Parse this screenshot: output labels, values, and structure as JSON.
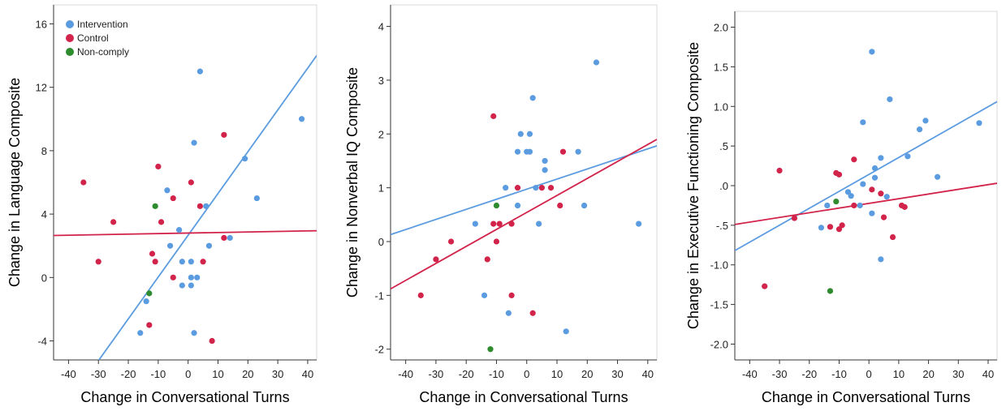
{
  "colors": {
    "intervention": "#5b9be0",
    "control": "#d2234a",
    "noncomply": "#2e8b2e"
  },
  "legend": [
    {
      "key": "intervention",
      "label": "Intervention"
    },
    {
      "key": "control",
      "label": "Control"
    },
    {
      "key": "noncomply",
      "label": "Non-comply"
    }
  ],
  "chart_data": [
    {
      "type": "scatter",
      "title": "",
      "xlabel": "Change in Conversational Turns",
      "ylabel": "Change in Language Composite",
      "xlim": [
        -45,
        43
      ],
      "ylim": [
        -5.2,
        17.2
      ],
      "xticks": [
        -40,
        -30,
        -20,
        -10,
        0,
        10,
        20,
        30,
        40
      ],
      "yticks": [
        -4,
        0,
        4,
        8,
        12,
        16
      ],
      "ytick_labels": [
        "-4",
        "0",
        "4",
        "8",
        "12",
        "16"
      ],
      "legend_position": "top-left",
      "series": [
        {
          "key": "intervention",
          "points": [
            [
              -16,
              -3.5
            ],
            [
              -14,
              -1.5
            ],
            [
              -7,
              5.5
            ],
            [
              -6,
              2
            ],
            [
              -3,
              3
            ],
            [
              -2,
              -0.5
            ],
            [
              -2,
              1
            ],
            [
              1,
              -0.5
            ],
            [
              1,
              0
            ],
            [
              1,
              1
            ],
            [
              2,
              8.5
            ],
            [
              2,
              -3.5
            ],
            [
              3,
              0
            ],
            [
              4,
              13
            ],
            [
              6,
              4.5
            ],
            [
              7,
              2
            ],
            [
              14,
              2.5
            ],
            [
              19,
              7.5
            ],
            [
              23,
              5
            ],
            [
              38,
              10
            ]
          ]
        },
        {
          "key": "control",
          "points": [
            [
              -35,
              6
            ],
            [
              -30,
              1
            ],
            [
              -25,
              3.5
            ],
            [
              -13,
              -3
            ],
            [
              -12,
              1.5
            ],
            [
              -11,
              1
            ],
            [
              -10,
              7
            ],
            [
              -9,
              3.5
            ],
            [
              -5,
              5
            ],
            [
              -5,
              0
            ],
            [
              1,
              6
            ],
            [
              4,
              4.5
            ],
            [
              5,
              1
            ],
            [
              8,
              -4
            ],
            [
              12,
              2.5
            ],
            [
              12,
              9
            ]
          ]
        },
        {
          "key": "noncomply",
          "points": [
            [
              -13,
              -1
            ],
            [
              -11,
              4.5
            ]
          ]
        }
      ],
      "fit_lines": [
        {
          "key": "intervention",
          "x": [
            -45,
            43
          ],
          "y": [
            -9.2,
            14.0
          ]
        },
        {
          "key": "control",
          "x": [
            -45,
            43
          ],
          "y": [
            2.65,
            2.95
          ]
        }
      ]
    },
    {
      "type": "scatter",
      "title": "",
      "xlabel": "Change in Conversational Turns",
      "ylabel": "Change in Nonverbal IQ Composite",
      "xlim": [
        -45,
        43
      ],
      "ylim": [
        -2.2,
        4.4
      ],
      "xticks": [
        -40,
        -30,
        -20,
        -10,
        0,
        10,
        20,
        30,
        40
      ],
      "yticks": [
        -2,
        -1,
        0,
        1,
        2,
        3,
        4
      ],
      "ytick_labels": [
        "-2",
        "-1",
        "0",
        "1",
        "2",
        "3",
        "4"
      ],
      "series": [
        {
          "key": "intervention",
          "points": [
            [
              -17,
              0.33
            ],
            [
              -14,
              -1
            ],
            [
              -7,
              1
            ],
            [
              -6,
              -1.33
            ],
            [
              -3,
              0.67
            ],
            [
              -3,
              1.67
            ],
            [
              -2,
              2
            ],
            [
              0,
              1.67
            ],
            [
              1,
              2
            ],
            [
              1,
              1.67
            ],
            [
              2,
              2.67
            ],
            [
              3,
              1
            ],
            [
              4,
              0.33
            ],
            [
              6,
              1.5
            ],
            [
              6,
              1.33
            ],
            [
              13,
              -1.67
            ],
            [
              17,
              1.67
            ],
            [
              19,
              0.67
            ],
            [
              23,
              3.33
            ],
            [
              37,
              0.33
            ]
          ]
        },
        {
          "key": "control",
          "points": [
            [
              -35,
              -1
            ],
            [
              -30,
              -0.33
            ],
            [
              -25,
              0
            ],
            [
              -13,
              -0.33
            ],
            [
              -11,
              2.33
            ],
            [
              -11,
              0.33
            ],
            [
              -10,
              0
            ],
            [
              -9,
              0.33
            ],
            [
              -5,
              0.33
            ],
            [
              -5,
              -1
            ],
            [
              -3,
              1
            ],
            [
              2,
              -1.33
            ],
            [
              5,
              1
            ],
            [
              8,
              1
            ],
            [
              11,
              0.67
            ],
            [
              12,
              1.67
            ]
          ]
        },
        {
          "key": "noncomply",
          "points": [
            [
              -12,
              -2
            ],
            [
              -10,
              0.67
            ]
          ]
        }
      ],
      "fit_lines": [
        {
          "key": "intervention",
          "x": [
            -45,
            43
          ],
          "y": [
            0.13,
            1.78
          ]
        },
        {
          "key": "control",
          "x": [
            -45,
            43
          ],
          "y": [
            -0.88,
            1.9
          ]
        }
      ]
    },
    {
      "type": "scatter",
      "title": "",
      "xlabel": "Change in Conversational Turns",
      "ylabel": "Change in Executive Functioning Composite",
      "xlim": [
        -45,
        43
      ],
      "ylim": [
        -2.2,
        2.2
      ],
      "xticks": [
        -40,
        -30,
        -20,
        -10,
        0,
        10,
        20,
        30,
        40
      ],
      "yticks": [
        -2.0,
        -1.5,
        -1.0,
        -0.5,
        0.0,
        0.5,
        1.0,
        1.5,
        2.0
      ],
      "ytick_labels": [
        "-2.0",
        "-1.5",
        "-1.0",
        "-.5",
        ".0",
        ".5",
        "1.0",
        "1.5",
        "2.0"
      ],
      "series": [
        {
          "key": "intervention",
          "points": [
            [
              -16,
              -0.53
            ],
            [
              -14,
              -0.25
            ],
            [
              -7,
              -0.08
            ],
            [
              -6,
              -0.13
            ],
            [
              -3,
              -0.25
            ],
            [
              -2,
              0.02
            ],
            [
              -2,
              0.8
            ],
            [
              1,
              1.69
            ],
            [
              1,
              -0.35
            ],
            [
              2,
              0.22
            ],
            [
              2,
              0.1
            ],
            [
              4,
              0.35
            ],
            [
              4,
              -0.93
            ],
            [
              6,
              -0.14
            ],
            [
              7,
              1.09
            ],
            [
              13,
              0.37
            ],
            [
              17,
              0.71
            ],
            [
              19,
              0.82
            ],
            [
              23,
              0.11
            ],
            [
              37,
              0.79
            ]
          ]
        },
        {
          "key": "control",
          "points": [
            [
              -35,
              -1.27
            ],
            [
              -30,
              0.19
            ],
            [
              -25,
              -0.41
            ],
            [
              -13,
              -0.52
            ],
            [
              -11,
              0.16
            ],
            [
              -10,
              -0.55
            ],
            [
              -9,
              -0.5
            ],
            [
              -5,
              0.33
            ],
            [
              -5,
              -0.25
            ],
            [
              1,
              -0.05
            ],
            [
              4,
              -0.1
            ],
            [
              5,
              -0.4
            ],
            [
              8,
              -0.65
            ],
            [
              11,
              -0.25
            ],
            [
              12,
              -0.27
            ],
            [
              -10,
              0.14
            ]
          ]
        },
        {
          "key": "noncomply",
          "points": [
            [
              -13,
              -1.33
            ],
            [
              -11,
              -0.2
            ]
          ]
        }
      ],
      "fit_lines": [
        {
          "key": "intervention",
          "x": [
            -45,
            43
          ],
          "y": [
            -0.82,
            1.06
          ]
        },
        {
          "key": "control",
          "x": [
            -45,
            43
          ],
          "y": [
            -0.49,
            0.03
          ]
        }
      ]
    }
  ]
}
